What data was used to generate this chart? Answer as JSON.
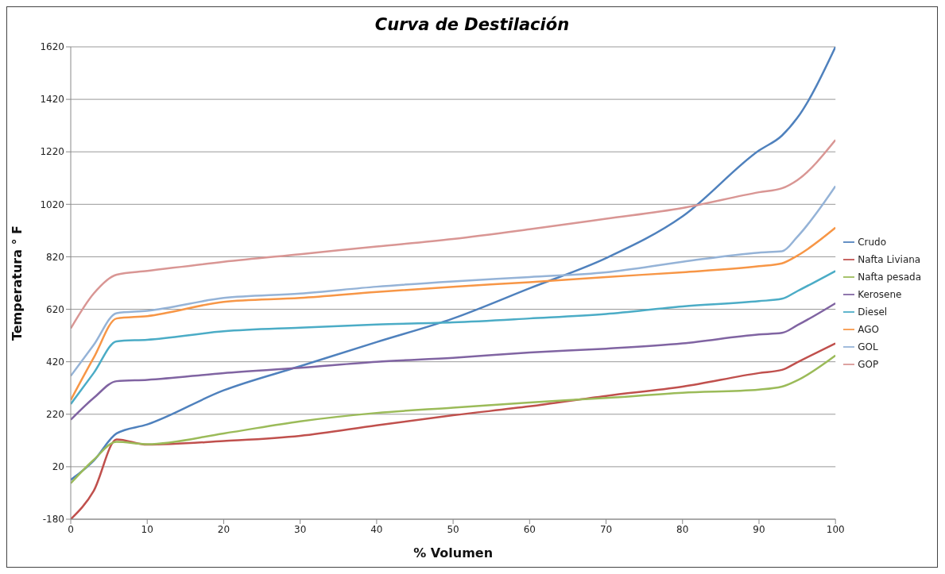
{
  "chart_data": {
    "type": "line",
    "title": "Curva de Destilación",
    "xlabel": "% Volumen",
    "ylabel": "Temperatura ° F",
    "x": [
      0,
      3,
      6,
      10,
      20,
      30,
      40,
      50,
      60,
      70,
      80,
      90,
      93,
      95,
      100
    ],
    "xlim": [
      0,
      100
    ],
    "xticks": [
      0,
      10,
      20,
      30,
      40,
      50,
      60,
      70,
      80,
      90,
      100
    ],
    "ylim": [
      -180,
      1620
    ],
    "yticks": [
      -180,
      20,
      220,
      420,
      620,
      820,
      1020,
      1220,
      1420,
      1620
    ],
    "grid": "y",
    "legend": "right",
    "marker": "none",
    "line_style": "solid",
    "series": [
      {
        "name": "Crudo",
        "color": "#4f81bd",
        "values": [
          -30,
          43,
          147,
          181,
          311,
          403,
          495,
          585,
          700,
          815,
          974,
          1225,
          1282,
          1349,
          1620
        ]
      },
      {
        "name": "Nafta Liviana",
        "color": "#c0504d",
        "values": [
          -180,
          -72,
          124,
          104,
          118,
          138,
          178,
          216,
          250,
          290,
          325,
          377,
          389,
          418,
          490
        ]
      },
      {
        "name": "Nafta pesada",
        "color": "#9bbb59",
        "values": [
          -43,
          46,
          115,
          106,
          147,
          193,
          225,
          245,
          265,
          282,
          302,
          314,
          325,
          349,
          444
        ]
      },
      {
        "name": "Kerosene",
        "color": "#8064a2",
        "values": [
          199,
          282,
          346,
          351,
          377,
          397,
          420,
          435,
          455,
          470,
          490,
          524,
          530,
          559,
          643
        ]
      },
      {
        "name": "Diesel",
        "color": "#4bacc6",
        "values": [
          259,
          377,
          498,
          504,
          536,
          550,
          562,
          570,
          585,
          602,
          631,
          651,
          660,
          689,
          766
        ]
      },
      {
        "name": "AGO",
        "color": "#f79646",
        "values": [
          274,
          435,
          585,
          594,
          648,
          663,
          686,
          706,
          723,
          743,
          761,
          784,
          795,
          824,
          931
        ]
      },
      {
        "name": "GOL",
        "color": "#95b3d7",
        "values": [
          366,
          484,
          605,
          614,
          663,
          680,
          706,
          726,
          743,
          761,
          801,
          836,
          841,
          896,
          1089
        ]
      },
      {
        "name": "GOP",
        "color": "#d99694",
        "values": [
          547,
          680,
          752,
          766,
          801,
          830,
          859,
          888,
          925,
          965,
          1006,
          1066,
          1081,
          1112,
          1265
        ]
      }
    ]
  }
}
